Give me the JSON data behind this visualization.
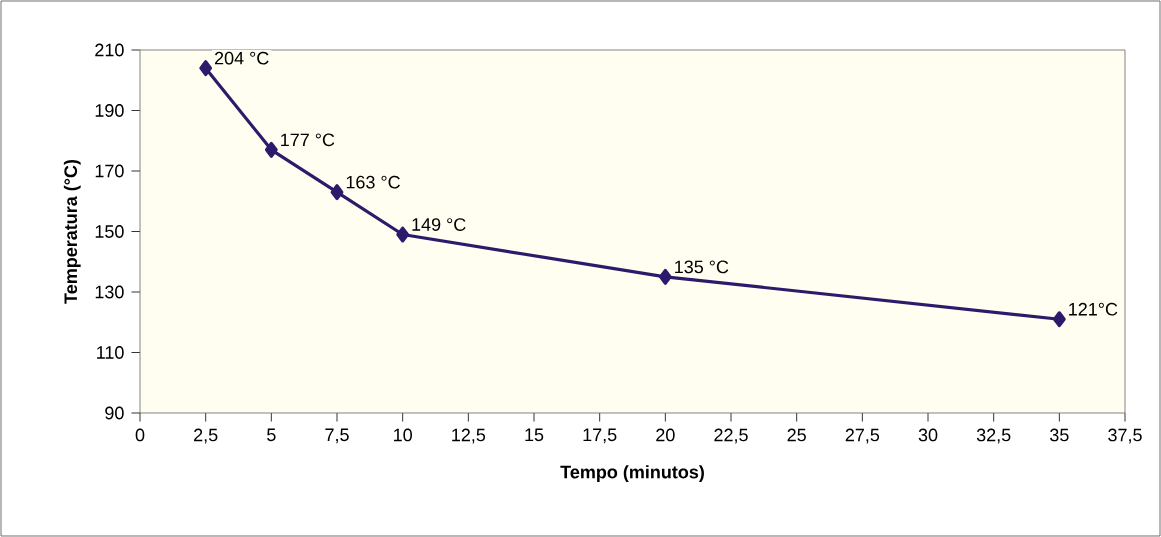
{
  "chart_data": {
    "type": "line",
    "xlabel": "Tempo (minutos)",
    "ylabel": "Temperatura (°C)",
    "x": [
      2.5,
      5,
      7.5,
      10,
      20,
      35
    ],
    "series": [
      {
        "color": "#2b1b6b",
        "values": [
          204,
          177,
          163,
          149,
          135,
          121
        ],
        "value_labels": [
          "204 °C",
          "177 °C",
          "163 °C",
          "149 °C",
          "135 °C",
          "121°C"
        ]
      }
    ],
    "xlim": [
      0,
      37.5
    ],
    "xticks": [
      0,
      {
        "value": 2.5,
        "label": "2,5"
      },
      5,
      {
        "value": 7.5,
        "label": "7,5"
      },
      10,
      {
        "value": 12.5,
        "label": "12,5"
      },
      15,
      {
        "value": 17.5,
        "label": "17,5"
      },
      20,
      {
        "value": 22.5,
        "label": "22,5"
      },
      25,
      {
        "value": 27.5,
        "label": "27,5"
      },
      30,
      {
        "value": 32.5,
        "label": "32,5"
      },
      35,
      {
        "value": 37.5,
        "label": "37,5"
      }
    ],
    "ylim": [
      90,
      210
    ],
    "yticks": [
      90,
      110,
      130,
      150,
      170,
      190,
      210
    ],
    "marker": "diamond",
    "line_style": "solid",
    "grid": false
  }
}
